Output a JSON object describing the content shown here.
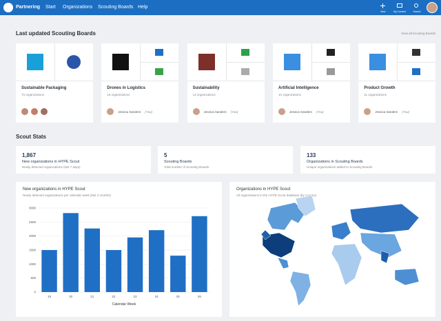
{
  "nav": {
    "brand": "Partnering",
    "links": [
      "Start",
      "Organizations",
      "Scouting Boards",
      "Help"
    ],
    "actions": [
      "New",
      "My Content",
      "Search"
    ]
  },
  "boards_section": {
    "title": "Last updated Scouting Boards",
    "link": "View all Scouting Boards"
  },
  "boards": [
    {
      "title": "Sustainable Packaging",
      "count": "73 organizations"
    },
    {
      "title": "Drones in Logistics",
      "count": "16 organizations",
      "owner": "Jessica Sanders",
      "owner_note": "(You)"
    },
    {
      "title": "Sustainability",
      "count": "13 organizations",
      "owner": "Jessica Sanders",
      "owner_note": "(You)"
    },
    {
      "title": "Artificial Intelligence",
      "count": "13 organizations",
      "owner": "Jessica Sanders",
      "owner_note": "(You)"
    },
    {
      "title": "Product Growth",
      "count": "11 organizations",
      "owner": "Jessica Sanders",
      "owner_note": "(You)"
    }
  ],
  "stats_section": {
    "title": "Scout Stats"
  },
  "stats": [
    {
      "value": "1,867",
      "label": "New organizations in HYPE Scout",
      "note": "Newly detected organizations (last 7 days)"
    },
    {
      "value": "5",
      "label": "Scouting Boards",
      "note": "Total number of Scouting Boards"
    },
    {
      "value": "133",
      "label": "Organizations in Scouting Boards",
      "note": "Unique organizations added to Scouting Boards"
    }
  ],
  "chart_data": {
    "type": "bar",
    "title": "New organizations in HYPE Scout",
    "subtitle": "Newly detected organizations per calendar week (last 2 months)",
    "x_label": "Calendar Week",
    "categories": [
      "19",
      "20",
      "21",
      "22",
      "23",
      "24",
      "25",
      "26"
    ],
    "values": [
      1500,
      2820,
      2270,
      1500,
      1950,
      2210,
      1300,
      2710
    ],
    "color": "#1f6fc5",
    "ylim": [
      0,
      3000
    ],
    "yticks": [
      0,
      500,
      1000,
      1500,
      2000,
      2500,
      3000
    ],
    "grid": true
  },
  "map": {
    "title": "Organizations in HYPE Scout",
    "subtitle": "All organizations in the HYPE Scout database (by country)"
  }
}
